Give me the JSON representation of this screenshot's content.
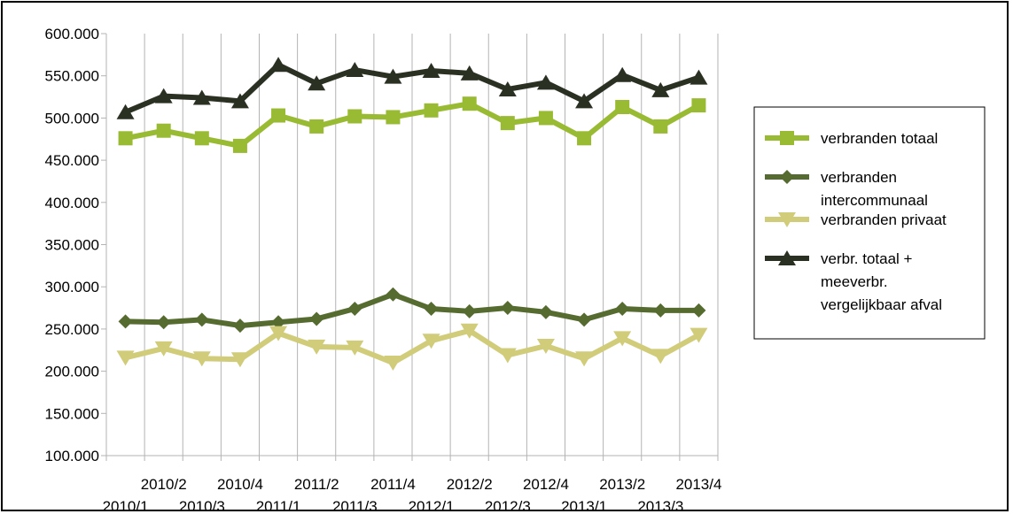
{
  "chart_data": {
    "type": "line",
    "title": "",
    "xlabel": "",
    "ylabel": "",
    "ylim": [
      100000,
      600000
    ],
    "yticks": [
      100000,
      150000,
      200000,
      250000,
      300000,
      350000,
      400000,
      450000,
      500000,
      550000,
      600000
    ],
    "ytick_labels": [
      "100.000",
      "150.000",
      "200.000",
      "250.000",
      "300.000",
      "350.000",
      "400.000",
      "450.000",
      "500.000",
      "550.000",
      "600.000"
    ],
    "categories": [
      "2010/1",
      "2010/2",
      "2010/3",
      "2010/4",
      "2011/1",
      "2011/2",
      "2011/3",
      "2011/4",
      "2012/1",
      "2012/2",
      "2012/3",
      "2012/4",
      "2013/1",
      "2013/2",
      "2013/3",
      "2013/4"
    ],
    "grid": "vertical",
    "legend_position": "right",
    "series": [
      {
        "name": "verbranden totaal",
        "legend_lines": [
          "verbranden totaal"
        ],
        "color": "#99bb33",
        "marker": "square",
        "values": [
          476000,
          485000,
          476000,
          467000,
          503000,
          490000,
          502000,
          501000,
          509000,
          517000,
          494000,
          500000,
          476000,
          513000,
          490000,
          515000
        ]
      },
      {
        "name": "verbranden intercommunaal",
        "legend_lines": [
          "verbranden",
          "intercommunaal"
        ],
        "color": "#556b2f",
        "marker": "diamond",
        "values": [
          259000,
          258000,
          261000,
          254000,
          258000,
          262000,
          274000,
          291000,
          274000,
          271000,
          275000,
          270000,
          261000,
          274000,
          272000,
          272000
        ]
      },
      {
        "name": "verbranden privaat",
        "legend_lines": [
          "verbranden privaat"
        ],
        "color": "#d0cc7a",
        "marker": "triangle-down",
        "values": [
          216000,
          227000,
          215000,
          214000,
          245000,
          229000,
          228000,
          210000,
          236000,
          248000,
          219000,
          230000,
          215000,
          239000,
          218000,
          243000
        ]
      },
      {
        "name": "verbr. totaal + meeverbr. vergelijkbaar afval",
        "legend_lines": [
          "verbr. totaal +",
          "meeverbr.",
          "vergelijkbaar afval"
        ],
        "color": "#2b3122",
        "marker": "triangle-up",
        "values": [
          507000,
          526000,
          524000,
          520000,
          563000,
          541000,
          557000,
          549000,
          556000,
          553000,
          534000,
          542000,
          520000,
          551000,
          533000,
          548000
        ]
      }
    ]
  }
}
